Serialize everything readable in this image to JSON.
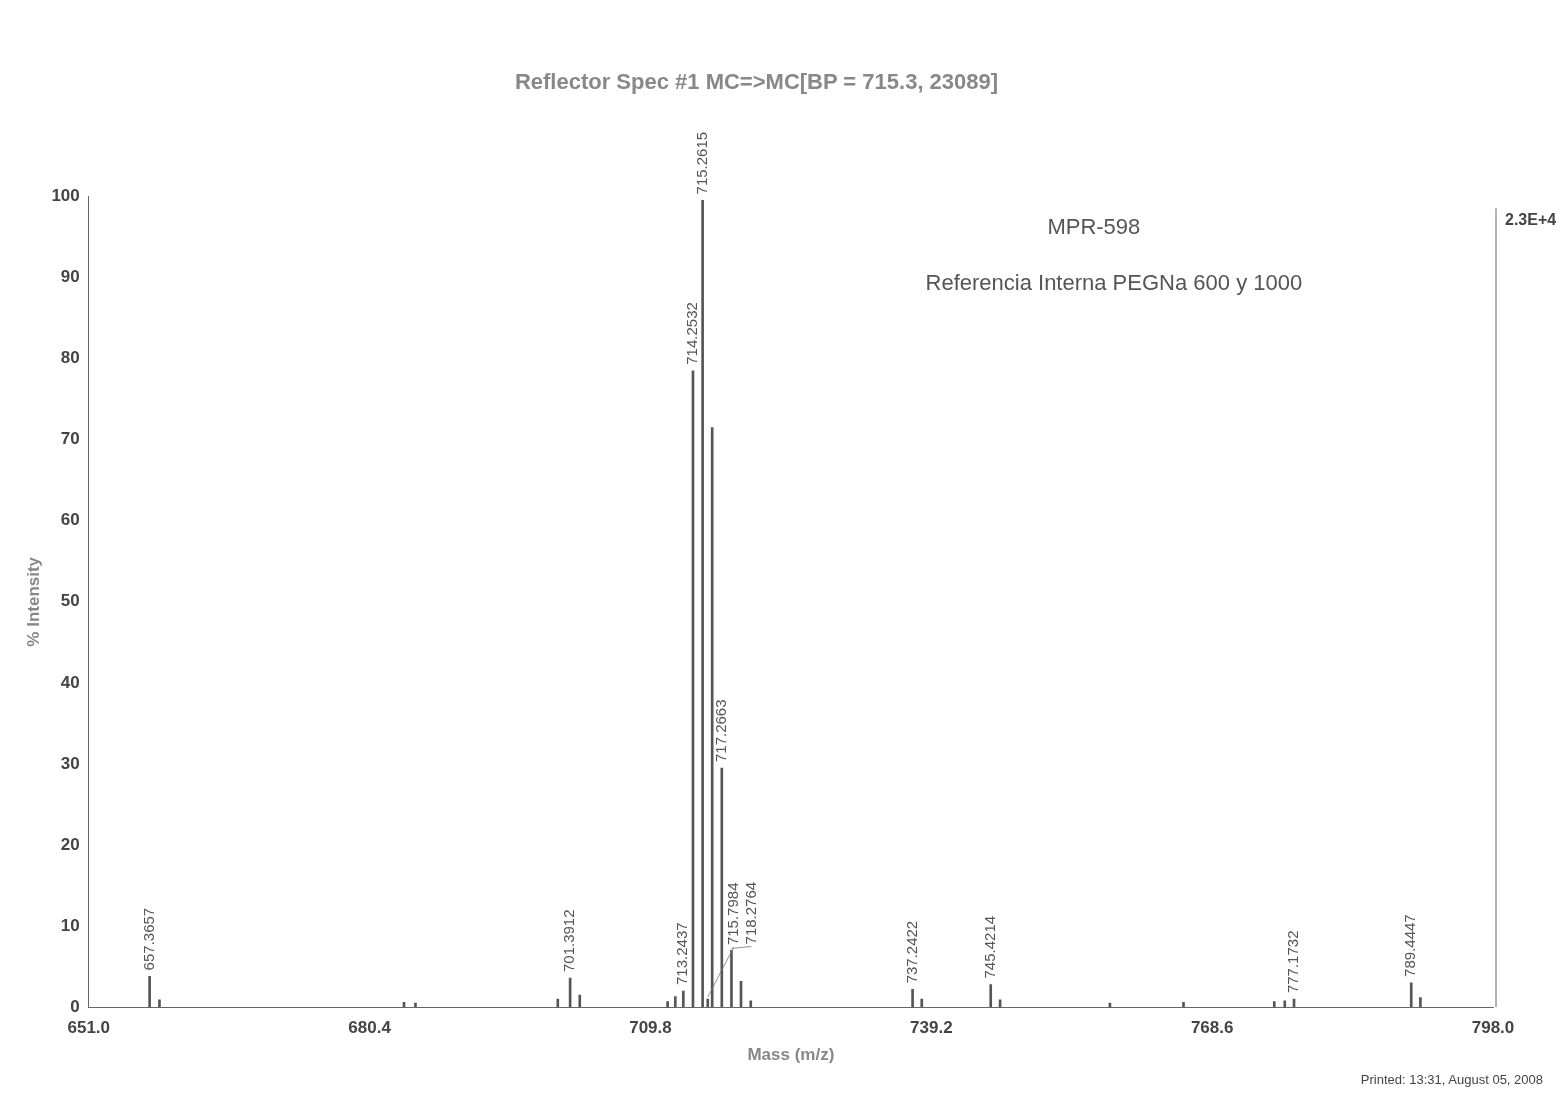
{
  "chart_data": {
    "type": "bar",
    "subtitle": "Reflector Spec #1 MC=>MC[BP = 715.3, 23089]",
    "xlabel": "Mass (m/z)",
    "ylabel": "% Intensity",
    "x": [
      657.37,
      658.4,
      684.0,
      685.2,
      700.1,
      701.39,
      702.4,
      711.6,
      712.4,
      713.24,
      714.25,
      715.26,
      715.8,
      716.26,
      717.27,
      718.28,
      719.28,
      720.3,
      737.24,
      738.2,
      745.42,
      746.4,
      757.9,
      765.6,
      775.1,
      776.2,
      777.17,
      789.44,
      790.4
    ],
    "values": [
      3.8,
      0.9,
      0.6,
      0.5,
      1.0,
      3.6,
      1.5,
      0.7,
      1.3,
      2.0,
      78.5,
      99.5,
      1.0,
      71.5,
      29.5,
      7.0,
      3.2,
      0.8,
      2.2,
      1.0,
      2.8,
      0.9,
      0.5,
      0.6,
      0.7,
      0.8,
      1.0,
      3.0,
      1.2
    ],
    "color": "#555555",
    "xlim": [
      651,
      798
    ],
    "xticks": [
      {
        "value": 651,
        "label": "651.0"
      },
      {
        "value": 680.4,
        "label": "680.4"
      },
      {
        "value": 709.8,
        "label": "709.8"
      },
      {
        "value": 739.2,
        "label": "739.2"
      },
      {
        "value": 768.6,
        "label": "768.6"
      },
      {
        "value": 798,
        "label": "798.0"
      }
    ],
    "ylim": [
      0,
      100
    ],
    "yticks": [
      0,
      10,
      20,
      30,
      40,
      50,
      60,
      70,
      80,
      90,
      100
    ],
    "annotations": [
      "MPR-598",
      "Referencia Interna PEGNa 600 y 1000",
      "2.3E+4",
      "Printed: 13:31, August 05, 2008",
      {
        "text": "657.3657",
        "x": 657.37,
        "y": 3.8
      },
      {
        "text": "701.3912",
        "x": 701.39,
        "y": 3.6
      },
      {
        "text": "713.2437",
        "x": 713.24,
        "y": 2.0
      },
      {
        "text": "714.2532",
        "x": 714.25,
        "y": 78.5
      },
      {
        "text": "715.2615",
        "x": 715.26,
        "y": 99.5
      },
      {
        "text": "715.7984",
        "x": 715.8,
        "y": 1.0
      },
      {
        "text": "717.2663",
        "x": 717.27,
        "y": 29.5
      },
      {
        "text": "718.2764",
        "x": 718.28,
        "y": 7.0
      },
      {
        "text": "737.2422",
        "x": 737.24,
        "y": 2.2
      },
      {
        "text": "745.4214",
        "x": 745.42,
        "y": 2.8
      },
      {
        "text": "777.1732",
        "x": 777.17,
        "y": 1.0
      },
      {
        "text": "789.4447",
        "x": 789.44,
        "y": 3.0
      }
    ]
  }
}
